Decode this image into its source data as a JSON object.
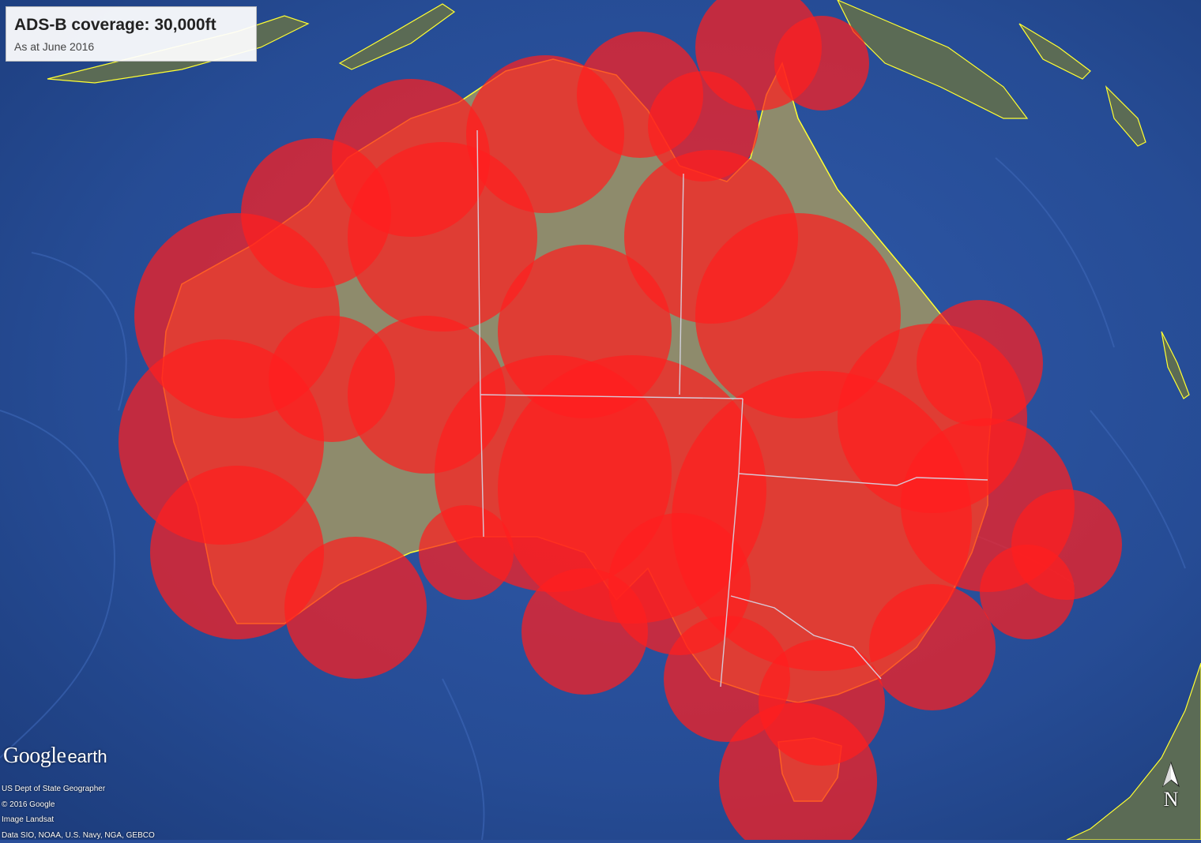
{
  "title": "ADS-B coverage: 30,000ft",
  "subtitle": "As at June 2016",
  "logo": {
    "brand": "Google",
    "product": "earth"
  },
  "attribution": [
    "US Dept of State Geographer",
    "© 2016 Google",
    "Image Landsat",
    "Data SIO, NOAA, U.S. Navy, NGA, GEBCO"
  ],
  "compass": {
    "label": "N",
    "icon": "north-arrow-icon"
  },
  "colors": {
    "ocean": "#2a4f9a",
    "coverage": "#ff1e1e",
    "land": "#8a8a6a",
    "coastline": "#ffff33",
    "state_border": "#d8d8e8"
  }
}
